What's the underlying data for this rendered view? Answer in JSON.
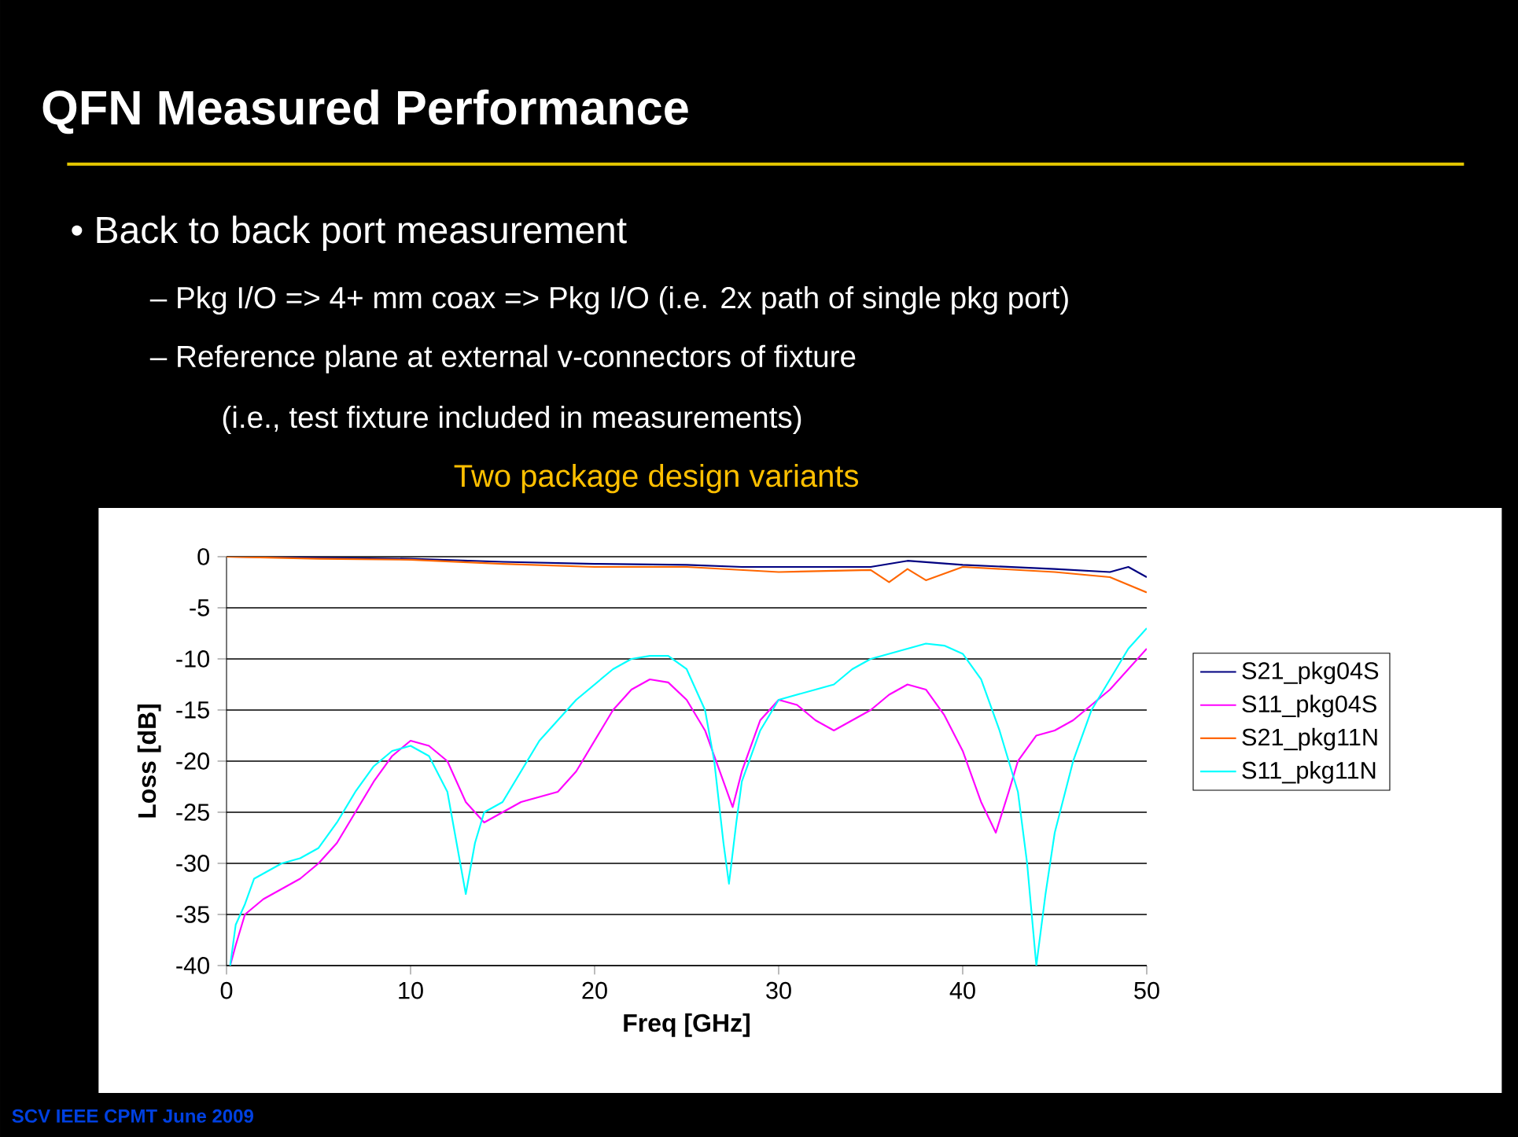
{
  "chart_data": {
    "type": "line",
    "title": "QFN Measured Performance",
    "subtitle": "Two package design variants",
    "annotations": [
      "• Back to back port measurement",
      "– Pkg I/O => 4+ mm coax => Pkg I/O  (i.e. 2x path of single pkg port)",
      "– Reference plane at external v-connectors of fixture",
      "(i.e., test fixture included in measurements)",
      "SCV IEEE CPMT  June 2009"
    ],
    "xlabel": "Freq [GHz]",
    "ylabel": "Loss [dB]",
    "xlim": [
      0,
      50
    ],
    "ylim": [
      -40,
      0
    ],
    "xticks": [
      0,
      10,
      20,
      30,
      40,
      50
    ],
    "yticks": [
      -40,
      -35,
      -30,
      -25,
      -20,
      -15,
      -10,
      -5,
      0
    ],
    "grid": "y",
    "legend": "right",
    "marker": "none",
    "line_style": "solid",
    "series": [
      {
        "name": "S21_pkg04S",
        "color": "#000080",
        "x": [
          0,
          5,
          10,
          15,
          20,
          25,
          28,
          30,
          35,
          36,
          37,
          40,
          45,
          48,
          49,
          50
        ],
        "values": [
          0,
          -0.1,
          -0.2,
          -0.5,
          -0.7,
          -0.8,
          -1,
          -1,
          -1,
          -0.7,
          -0.4,
          -0.8,
          -1.2,
          -1.5,
          -1,
          -2
        ]
      },
      {
        "name": "S11_pkg04S",
        "color": "#ff00ff",
        "x": [
          0.2,
          0.5,
          1,
          2,
          3,
          4,
          5,
          6,
          7,
          8,
          9,
          10,
          11,
          12,
          13,
          14,
          15,
          16,
          17,
          18,
          19,
          20,
          21,
          22,
          23,
          24,
          25,
          26,
          27,
          27.5,
          28,
          29,
          30,
          31,
          32,
          33,
          34,
          35,
          36,
          37,
          38,
          39,
          40,
          41,
          41.8,
          42.5,
          43,
          44,
          45,
          46,
          47,
          48,
          49,
          50
        ],
        "values": [
          -40,
          -38,
          -35,
          -33.5,
          -32.5,
          -31.5,
          -30,
          -28,
          -25,
          -22,
          -19.5,
          -18,
          -18.5,
          -20,
          -24,
          -26,
          -25,
          -24,
          -23.5,
          -23,
          -21,
          -18,
          -15,
          -13,
          -12,
          -12.3,
          -14,
          -17,
          -22,
          -24.5,
          -21,
          -16,
          -14,
          -14.5,
          -16,
          -17,
          -16,
          -15,
          -13.5,
          -12.5,
          -13,
          -15.5,
          -19,
          -24,
          -27,
          -23,
          -20,
          -17.5,
          -17,
          -16,
          -14.5,
          -13,
          -11,
          -9
        ]
      },
      {
        "name": "S21_pkg11N",
        "color": "#ff6600",
        "x": [
          0,
          5,
          10,
          15,
          20,
          25,
          30,
          35,
          36,
          37,
          38,
          40,
          45,
          48,
          50
        ],
        "values": [
          0,
          -0.2,
          -0.3,
          -0.7,
          -1,
          -1,
          -1.5,
          -1.3,
          -2.5,
          -1.2,
          -2.3,
          -1,
          -1.5,
          -2,
          -3.5
        ]
      },
      {
        "name": "S11_pkg11N",
        "color": "#00ffff",
        "x": [
          0.2,
          0.5,
          1,
          1.5,
          3,
          4,
          5,
          6,
          7,
          8,
          9,
          10,
          11,
          12,
          12.5,
          13,
          13.5,
          14,
          15,
          16,
          17,
          18,
          19,
          20,
          21,
          22,
          23,
          24,
          25,
          26,
          26.5,
          27,
          27.3,
          27.7,
          28,
          29,
          30,
          32,
          33,
          34,
          35,
          36,
          37,
          38,
          39,
          40,
          41,
          42,
          43,
          43.5,
          44,
          44.5,
          45,
          46,
          47,
          48,
          49,
          50
        ],
        "values": [
          -40,
          -36,
          -34,
          -31.5,
          -30,
          -29.5,
          -28.5,
          -26,
          -23,
          -20.5,
          -19,
          -18.5,
          -19.5,
          -23,
          -28,
          -33,
          -28,
          -25,
          -24,
          -21,
          -18,
          -16,
          -14,
          -12.5,
          -11,
          -10,
          -9.7,
          -9.7,
          -11,
          -15,
          -20,
          -28,
          -32,
          -26,
          -22,
          -17,
          -14,
          -13,
          -12.5,
          -11,
          -10,
          -9.5,
          -9,
          -8.5,
          -8.7,
          -9.5,
          -12,
          -17,
          -23,
          -30,
          -40,
          -33,
          -27,
          -20,
          -15,
          -12,
          -9,
          -7
        ]
      }
    ]
  }
}
